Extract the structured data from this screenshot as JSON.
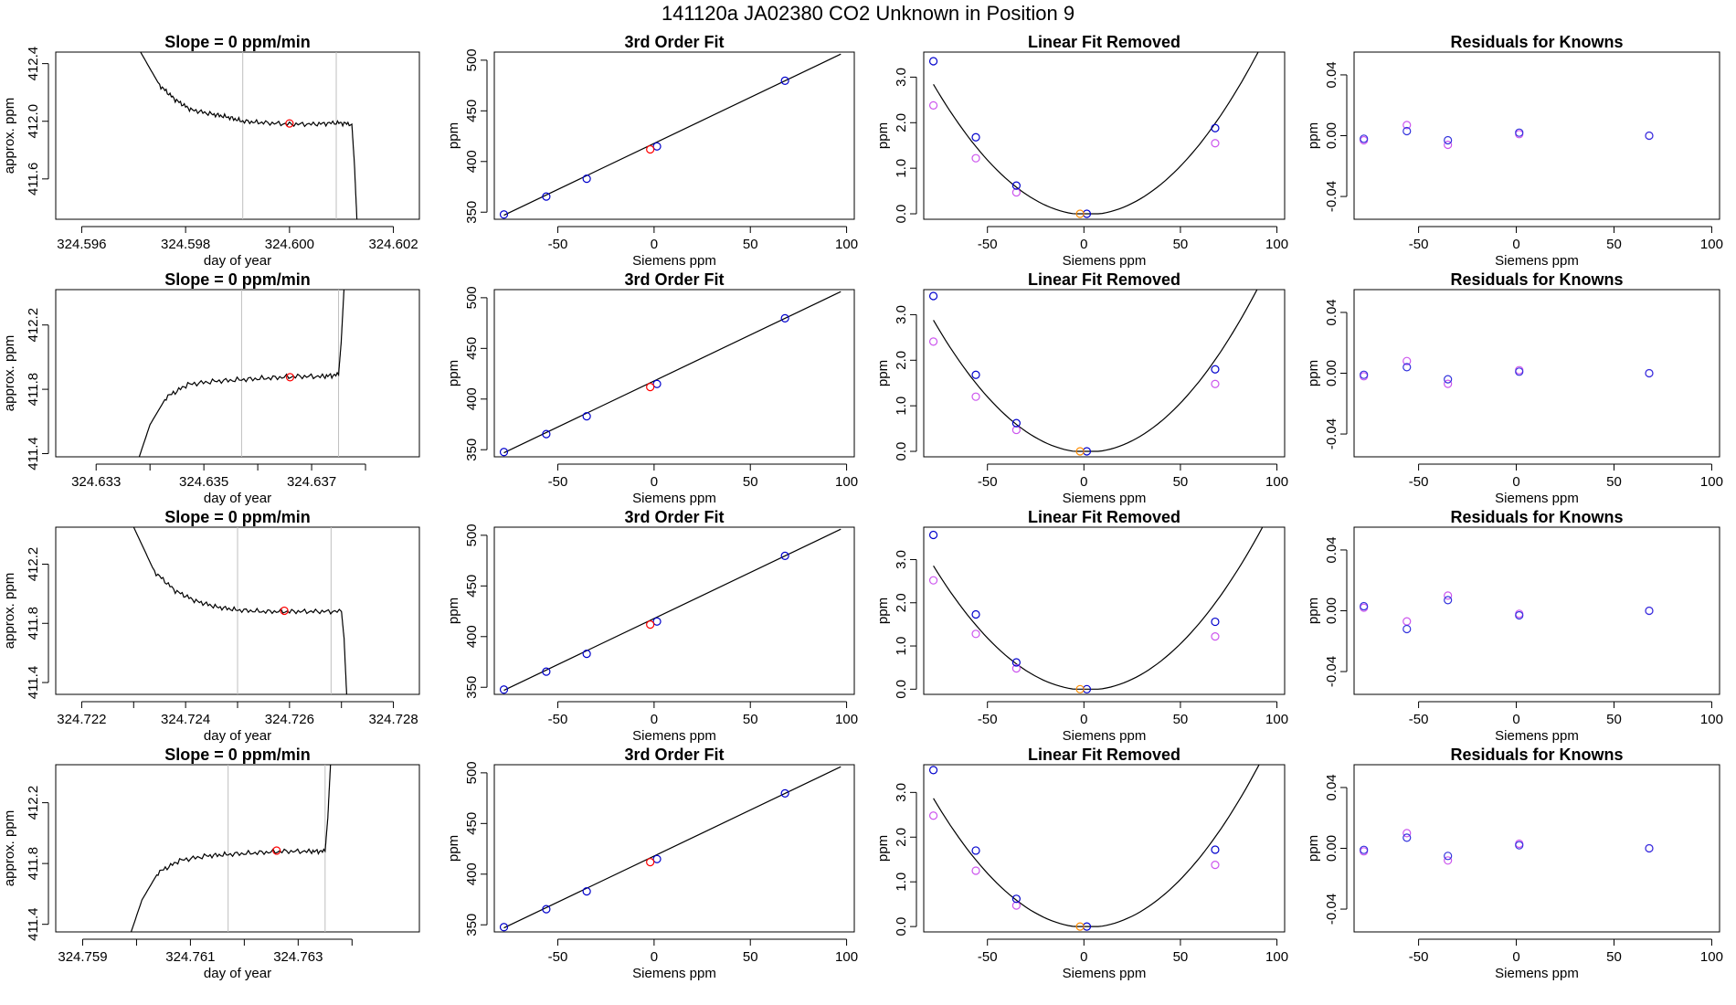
{
  "page_title": "141120a     JA02380   CO2 Unknown in Position  9",
  "colors": {
    "line": "#000000",
    "frame": "#000000",
    "guide": "#bfbfbf",
    "known_point": "#0000cc",
    "unknown_point": "#ff0000",
    "model_point": "#cc55ee",
    "residual_a": "#cc55ee",
    "residual_b": "#3333dd",
    "orange_point": "#ff8c00"
  },
  "chart_data": [
    {
      "id": "r1-slope",
      "type": "line",
      "title": "Slope =  0  ppm/min",
      "xlabel": "day of year",
      "ylabel": "approx. ppm",
      "xlim": [
        324.5955,
        324.6025
      ],
      "ylim": [
        411.32,
        412.48
      ],
      "xticks": [
        324.596,
        324.598,
        324.6,
        324.602
      ],
      "xticklabels": [
        "324.596",
        "324.598",
        "324.600",
        "324.602"
      ],
      "yticks": [
        411.6,
        412.0,
        412.4
      ],
      "yticklabels": [
        "411.6",
        "412.0",
        "412.4"
      ],
      "vlines": [
        324.5991,
        324.6009
      ],
      "marker": {
        "x": 324.6,
        "y": 411.985,
        "color": "red"
      },
      "series": [
        {
          "x": [
            324.5971,
            324.5975,
            324.5978,
            324.5981,
            324.5985,
            324.5988,
            324.5991,
            324.5995,
            324.6,
            324.6005,
            324.6009,
            324.6012,
            324.60125,
            324.6013
          ],
          "y": [
            412.5,
            412.25,
            412.15,
            412.08,
            412.05,
            412.03,
            412.0,
            411.99,
            411.98,
            411.98,
            411.99,
            411.98,
            411.7,
            411.3
          ]
        }
      ]
    },
    {
      "id": "r1-fit",
      "type": "scatter",
      "title": "3rd Order Fit",
      "xlabel": "Siemens ppm",
      "ylabel": "ppm",
      "xlim": [
        -83,
        104
      ],
      "ylim": [
        343,
        508
      ],
      "xticks": [
        -50,
        0,
        50,
        100
      ],
      "xticklabels": [
        "-50",
        "0",
        "50",
        "100"
      ],
      "yticks": [
        350,
        400,
        450,
        500
      ],
      "yticklabels": [
        "350",
        "400",
        "450",
        "500"
      ],
      "curve": {
        "x": [
          -78,
          97
        ],
        "y": [
          347,
          506
        ]
      },
      "known": {
        "x": [
          -78,
          -56,
          -35,
          1.5,
          68
        ],
        "y": [
          347.7,
          365.4,
          383.0,
          414.9,
          479.7
        ]
      },
      "unknown": {
        "x": [
          -2
        ],
        "y": [
          411.98
        ]
      }
    },
    {
      "id": "r1-lin",
      "type": "scatter",
      "title": "Linear Fit Removed",
      "xlabel": "Siemens ppm",
      "ylabel": "ppm",
      "xlim": [
        -83,
        104
      ],
      "ylim": [
        -0.12,
        3.55
      ],
      "xticks": [
        -50,
        0,
        50,
        100
      ],
      "xticklabels": [
        "-50",
        "0",
        "50",
        "100"
      ],
      "yticks": [
        0.0,
        1.0,
        2.0,
        3.0
      ],
      "yticklabels": [
        "0.0",
        "1.0",
        "2.0",
        "3.0"
      ],
      "curve_a": 0.000453,
      "known": {
        "x": [
          -78,
          -56,
          -35,
          1.5,
          68
        ],
        "y": [
          3.35,
          1.68,
          0.62,
          0.0,
          1.88
        ]
      },
      "model": {
        "x": [
          -78,
          -56,
          -35,
          68
        ],
        "y": [
          2.38,
          1.22,
          0.47,
          1.55
        ]
      },
      "orange": {
        "x": [
          -2
        ],
        "y": [
          0.0
        ]
      }
    },
    {
      "id": "r1-res",
      "type": "scatter",
      "title": "Residuals for Knowns",
      "xlabel": "Siemens ppm",
      "ylabel": "ppm",
      "xlim": [
        -83,
        104
      ],
      "ylim": [
        -0.055,
        0.055
      ],
      "xticks": [
        -50,
        0,
        50,
        100
      ],
      "xticklabels": [
        "-50",
        "0",
        "50",
        "100"
      ],
      "yticks": [
        -0.04,
        0.0,
        0.04
      ],
      "yticklabels": [
        "-0.04",
        "0.00",
        "0.04"
      ],
      "a": {
        "x": [
          -78,
          -56,
          -35,
          1.5,
          68
        ],
        "y": [
          -0.003,
          0.007,
          -0.006,
          0.001,
          0.0
        ]
      },
      "b": {
        "x": [
          -78,
          -56,
          -35,
          1.5,
          68
        ],
        "y": [
          -0.002,
          0.003,
          -0.003,
          0.002,
          0.0
        ]
      }
    },
    {
      "id": "r2-slope",
      "type": "line",
      "title": "Slope =  0  ppm/min",
      "xlabel": "day of year",
      "ylabel": "approx. ppm",
      "xlim": [
        324.63225,
        324.639
      ],
      "ylim": [
        411.38,
        412.42
      ],
      "xticks": [
        324.633,
        324.634,
        324.635,
        324.636,
        324.637,
        324.638
      ],
      "xticklabels": [
        "324.633",
        "",
        "324.635",
        "",
        "324.637",
        ""
      ],
      "yticks": [
        411.4,
        411.8,
        412.2
      ],
      "yticklabels": [
        "411.4",
        "411.8",
        "412.2"
      ],
      "vlines": [
        324.6357,
        324.6375
      ],
      "marker": {
        "x": [
          324.6366
        ],
        "y": [
          411.875
        ],
        "color": "red"
      },
      "series": [
        {
          "x": [
            324.6338,
            324.634,
            324.6343,
            324.6347,
            324.6352,
            324.6357,
            324.6362,
            324.6367,
            324.6372,
            324.6375,
            324.63755,
            324.6376
          ],
          "y": [
            411.38,
            411.58,
            411.75,
            411.83,
            411.85,
            411.86,
            411.87,
            411.88,
            411.88,
            411.89,
            412.1,
            412.42
          ]
        }
      ]
    },
    {
      "id": "r2-fit",
      "type": "scatter",
      "title": "3rd Order Fit",
      "xlabel": "Siemens ppm",
      "ylabel": "ppm",
      "xlim": [
        -83,
        104
      ],
      "ylim": [
        343,
        508
      ],
      "xticks": [
        -50,
        0,
        50,
        100
      ],
      "xticklabels": [
        "-50",
        "0",
        "50",
        "100"
      ],
      "yticks": [
        350,
        400,
        450,
        500
      ],
      "yticklabels": [
        "350",
        "400",
        "450",
        "500"
      ],
      "curve": {
        "x": [
          -78,
          97
        ],
        "y": [
          347,
          506
        ]
      },
      "known": {
        "x": [
          -78,
          -56,
          -35,
          1.5,
          68
        ],
        "y": [
          347.7,
          365.4,
          383.0,
          414.9,
          479.7
        ]
      },
      "unknown": {
        "x": [
          -2
        ],
        "y": [
          411.88
        ]
      }
    },
    {
      "id": "r2-lin",
      "type": "scatter",
      "title": "Linear Fit Removed",
      "xlabel": "Siemens ppm",
      "ylabel": "ppm",
      "xlim": [
        -83,
        104
      ],
      "ylim": [
        -0.12,
        3.55
      ],
      "xticks": [
        -50,
        0,
        50,
        100
      ],
      "xticklabels": [
        "-50",
        "0",
        "50",
        "100"
      ],
      "yticks": [
        0.0,
        1.0,
        2.0,
        3.0
      ],
      "yticklabels": [
        "0.0",
        "1.0",
        "2.0",
        "3.0"
      ],
      "curve_a": 0.000459,
      "known": {
        "x": [
          -78,
          -56,
          -35,
          1.5,
          68
        ],
        "y": [
          3.41,
          1.68,
          0.62,
          0.0,
          1.8
        ]
      },
      "model": {
        "x": [
          -78,
          -56,
          -35,
          68
        ],
        "y": [
          2.41,
          1.2,
          0.47,
          1.48
        ]
      },
      "orange": {
        "x": [
          -2
        ],
        "y": [
          0.0
        ]
      }
    },
    {
      "id": "r2-res",
      "type": "scatter",
      "title": "Residuals for Knowns",
      "xlabel": "Siemens ppm",
      "ylabel": "ppm",
      "xlim": [
        -83,
        104
      ],
      "ylim": [
        -0.055,
        0.055
      ],
      "xticks": [
        -50,
        0,
        50,
        100
      ],
      "xticklabels": [
        "-50",
        "0",
        "50",
        "100"
      ],
      "yticks": [
        -0.04,
        0.0,
        0.04
      ],
      "yticklabels": [
        "-0.04",
        "0.00",
        "0.04"
      ],
      "a": {
        "x": [
          -78,
          -56,
          -35,
          1.5,
          68
        ],
        "y": [
          -0.002,
          0.008,
          -0.007,
          0.002,
          0.0
        ]
      },
      "b": {
        "x": [
          -78,
          -56,
          -35,
          1.5,
          68
        ],
        "y": [
          -0.001,
          0.004,
          -0.004,
          0.001,
          0.0
        ]
      }
    },
    {
      "id": "r3-slope",
      "type": "line",
      "title": "Slope =  0  ppm/min",
      "xlabel": "day of year",
      "ylabel": "approx. ppm",
      "xlim": [
        324.7215,
        324.7285
      ],
      "ylim": [
        411.32,
        412.45
      ],
      "xticks": [
        324.722,
        324.723,
        324.724,
        324.725,
        324.726,
        324.727,
        324.728
      ],
      "xticklabels": [
        "324.722",
        "",
        "324.724",
        "",
        "324.726",
        "",
        "324.728"
      ],
      "yticks": [
        411.4,
        411.8,
        412.2
      ],
      "yticklabels": [
        "411.4",
        "411.8",
        "412.2"
      ],
      "vlines": [
        324.725,
        324.7268
      ],
      "marker": {
        "x": 324.7259,
        "y": 411.885,
        "color": "red"
      },
      "series": [
        {
          "x": [
            324.723,
            324.7234,
            324.7238,
            324.7242,
            324.7246,
            324.725,
            324.7255,
            324.726,
            324.7265,
            324.727,
            324.72705,
            324.7271
          ],
          "y": [
            412.45,
            412.15,
            412.02,
            411.95,
            411.91,
            411.89,
            411.88,
            411.88,
            411.88,
            411.88,
            411.7,
            411.32
          ]
        }
      ]
    },
    {
      "id": "r3-fit",
      "type": "scatter",
      "title": "3rd Order Fit",
      "xlabel": "Siemens ppm",
      "ylabel": "ppm",
      "xlim": [
        -83,
        104
      ],
      "ylim": [
        343,
        508
      ],
      "xticks": [
        -50,
        0,
        50,
        100
      ],
      "xticklabels": [
        "-50",
        "0",
        "50",
        "100"
      ],
      "yticks": [
        350,
        400,
        450,
        500
      ],
      "yticklabels": [
        "350",
        "400",
        "450",
        "500"
      ],
      "curve": {
        "x": [
          -78,
          97
        ],
        "y": [
          347,
          506
        ]
      },
      "known": {
        "x": [
          -78,
          -56,
          -35,
          1.5,
          68
        ],
        "y": [
          347.7,
          365.4,
          383.0,
          414.9,
          479.7
        ]
      },
      "unknown": {
        "x": [
          -2
        ],
        "y": [
          411.88
        ]
      }
    },
    {
      "id": "r3-lin",
      "type": "scatter",
      "title": "Linear Fit Removed",
      "xlabel": "Siemens ppm",
      "ylabel": "ppm",
      "xlim": [
        -83,
        104
      ],
      "ylim": [
        -0.12,
        3.75
      ],
      "xticks": [
        -50,
        0,
        50,
        100
      ],
      "xticklabels": [
        "-50",
        "0",
        "50",
        "100"
      ],
      "yticks": [
        0.0,
        1.0,
        2.0,
        3.0
      ],
      "yticklabels": [
        "0.0",
        "1.0",
        "2.0",
        "3.0"
      ],
      "curve_a": 0.000455,
      "known": {
        "x": [
          -78,
          -56,
          -35,
          1.5,
          68
        ],
        "y": [
          3.57,
          1.73,
          0.62,
          0.0,
          1.56
        ]
      },
      "model": {
        "x": [
          -78,
          -56,
          -35,
          68
        ],
        "y": [
          2.52,
          1.28,
          0.48,
          1.22
        ]
      },
      "orange": {
        "x": [
          -2
        ],
        "y": [
          0.0
        ]
      }
    },
    {
      "id": "r3-res",
      "type": "scatter",
      "title": "Residuals for Knowns",
      "xlabel": "Siemens ppm",
      "ylabel": "ppm",
      "xlim": [
        -83,
        104
      ],
      "ylim": [
        -0.055,
        0.055
      ],
      "xticks": [
        -50,
        0,
        50,
        100
      ],
      "xticklabels": [
        "-50",
        "0",
        "50",
        "100"
      ],
      "yticks": [
        -0.04,
        0.0,
        0.04
      ],
      "yticklabels": [
        "-0.04",
        "0.00",
        "0.04"
      ],
      "a": {
        "x": [
          -78,
          -56,
          -35,
          1.5,
          68
        ],
        "y": [
          0.002,
          -0.007,
          0.01,
          -0.002,
          0.0
        ]
      },
      "b": {
        "x": [
          -78,
          -56,
          -35,
          1.5,
          68
        ],
        "y": [
          0.003,
          -0.012,
          0.007,
          -0.003,
          0.0
        ]
      }
    },
    {
      "id": "r4-slope",
      "type": "line",
      "title": "Slope =  0  ppm/min",
      "xlabel": "day of year",
      "ylabel": "approx. ppm",
      "xlim": [
        324.7585,
        324.76525
      ],
      "ylim": [
        411.35,
        412.45
      ],
      "xticks": [
        324.759,
        324.76,
        324.761,
        324.762,
        324.763,
        324.764
      ],
      "xticklabels": [
        "324.759",
        "",
        "324.761",
        "",
        "324.763",
        ""
      ],
      "yticks": [
        411.4,
        411.8,
        412.2
      ],
      "yticklabels": [
        "411.4",
        "411.8",
        "412.2"
      ],
      "vlines": [
        324.7617,
        324.7635
      ],
      "marker": {
        "x": 324.7626,
        "y": 411.885,
        "color": "red"
      },
      "series": [
        {
          "x": [
            324.7599,
            324.7601,
            324.7604,
            324.7608,
            324.7613,
            324.7617,
            324.7622,
            324.7627,
            324.7632,
            324.7635,
            324.76355,
            324.7636
          ],
          "y": [
            411.35,
            411.56,
            411.74,
            411.82,
            411.85,
            411.86,
            411.87,
            411.88,
            411.88,
            411.88,
            412.1,
            412.45
          ]
        }
      ]
    },
    {
      "id": "r4-fit",
      "type": "scatter",
      "title": "3rd Order Fit",
      "xlabel": "Siemens ppm",
      "ylabel": "ppm",
      "xlim": [
        -83,
        104
      ],
      "ylim": [
        343,
        508
      ],
      "xticks": [
        -50,
        0,
        50,
        100
      ],
      "xticklabels": [
        "-50",
        "0",
        "50",
        "100"
      ],
      "yticks": [
        350,
        400,
        450,
        500
      ],
      "yticklabels": [
        "350",
        "400",
        "450",
        "500"
      ],
      "curve": {
        "x": [
          -78,
          97
        ],
        "y": [
          347,
          506
        ]
      },
      "known": {
        "x": [
          -78,
          -56,
          -35,
          1.5,
          68
        ],
        "y": [
          347.7,
          365.4,
          383.0,
          414.9,
          479.7
        ]
      },
      "unknown": {
        "x": [
          -2
        ],
        "y": [
          411.88
        ]
      }
    },
    {
      "id": "r4-lin",
      "type": "scatter",
      "title": "Linear Fit Removed",
      "xlabel": "Siemens ppm",
      "ylabel": "ppm",
      "xlim": [
        -83,
        104
      ],
      "ylim": [
        -0.12,
        3.62
      ],
      "xticks": [
        -50,
        0,
        50,
        100
      ],
      "xticklabels": [
        "-50",
        "0",
        "50",
        "100"
      ],
      "yticks": [
        0.0,
        1.0,
        2.0,
        3.0
      ],
      "yticklabels": [
        "0.0",
        "1.0",
        "2.0",
        "3.0"
      ],
      "curve_a": 0.000457,
      "known": {
        "x": [
          -78,
          -56,
          -35,
          1.5,
          68
        ],
        "y": [
          3.5,
          1.7,
          0.62,
          0.0,
          1.72
        ]
      },
      "model": {
        "x": [
          -78,
          -56,
          -35,
          68
        ],
        "y": [
          2.48,
          1.25,
          0.47,
          1.38
        ]
      },
      "orange": {
        "x": [
          -2
        ],
        "y": [
          0.0
        ]
      }
    },
    {
      "id": "r4-res",
      "type": "scatter",
      "title": "Residuals for Knowns",
      "xlabel": "Siemens ppm",
      "ylabel": "ppm",
      "xlim": [
        -83,
        104
      ],
      "ylim": [
        -0.055,
        0.055
      ],
      "xticks": [
        -50,
        0,
        50,
        100
      ],
      "xticklabels": [
        "-50",
        "0",
        "50",
        "100"
      ],
      "yticks": [
        -0.04,
        0.0,
        0.04
      ],
      "yticklabels": [
        "-0.04",
        "0.00",
        "0.04"
      ],
      "a": {
        "x": [
          -78,
          -56,
          -35,
          1.5,
          68
        ],
        "y": [
          -0.002,
          0.01,
          -0.008,
          0.003,
          0.0
        ]
      },
      "b": {
        "x": [
          -78,
          -56,
          -35,
          1.5,
          68
        ],
        "y": [
          -0.001,
          0.007,
          -0.005,
          0.002,
          0.0
        ]
      }
    }
  ]
}
